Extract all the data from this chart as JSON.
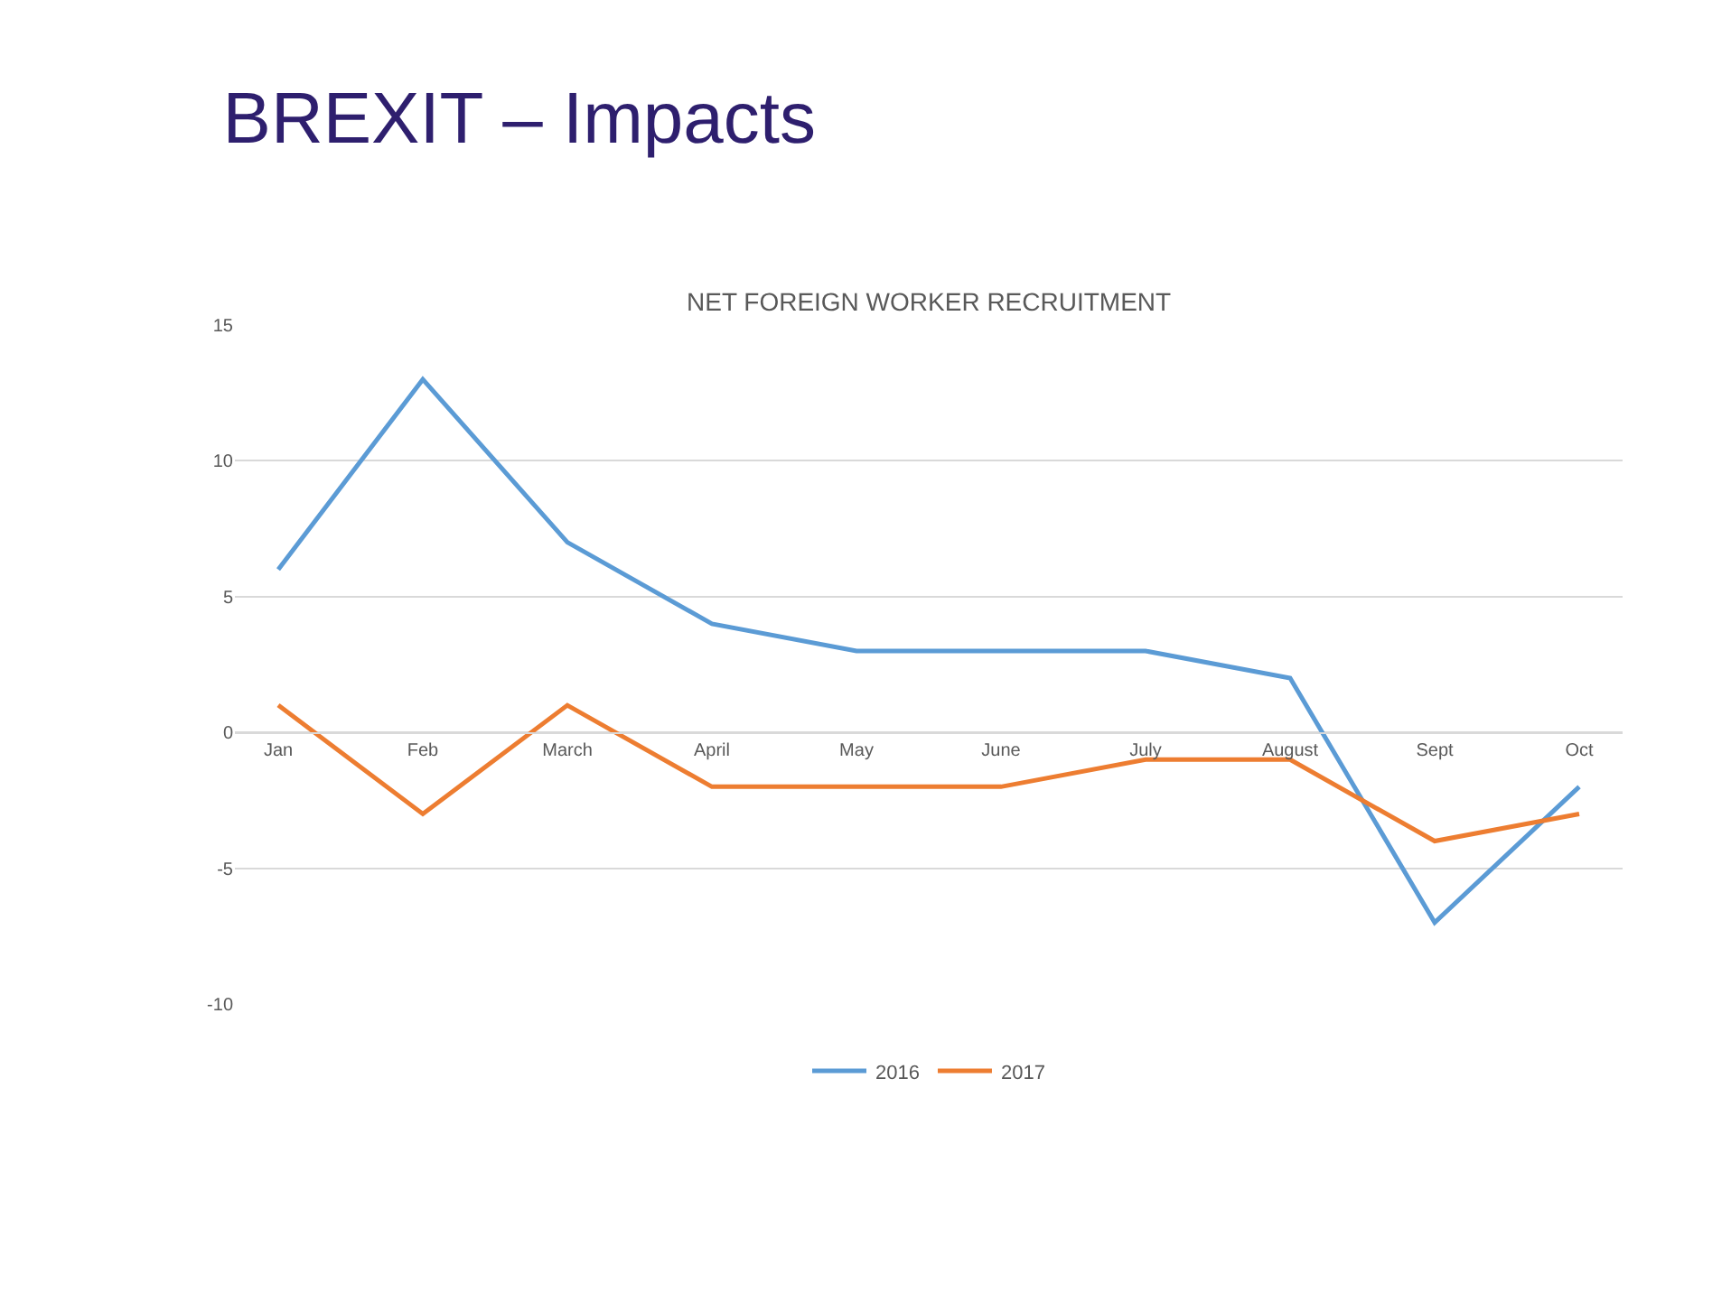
{
  "chart_data": {
    "type": "line",
    "title": "BREXIT – Impacts",
    "subtitle": "NET FOREIGN WORKER RECRUITMENT",
    "categories": [
      "Jan",
      "Feb",
      "March",
      "April",
      "May",
      "June",
      "July",
      "August",
      "Sept",
      "Oct"
    ],
    "series": [
      {
        "name": "2016",
        "color": "#5b9bd5",
        "values": [
          6,
          13,
          7,
          4,
          3,
          3,
          3,
          2,
          -7,
          -2
        ]
      },
      {
        "name": "2017",
        "color": "#ed7d31",
        "values": [
          1,
          -3,
          1,
          -2,
          -2,
          -2,
          -1,
          -1,
          -4,
          -3
        ]
      }
    ],
    "ylim": [
      -10,
      15
    ],
    "yticks": [
      -10,
      -5,
      0,
      5,
      10,
      15
    ],
    "grid": "y",
    "legend": "bottom",
    "marker": "none",
    "line_style": "solid"
  }
}
